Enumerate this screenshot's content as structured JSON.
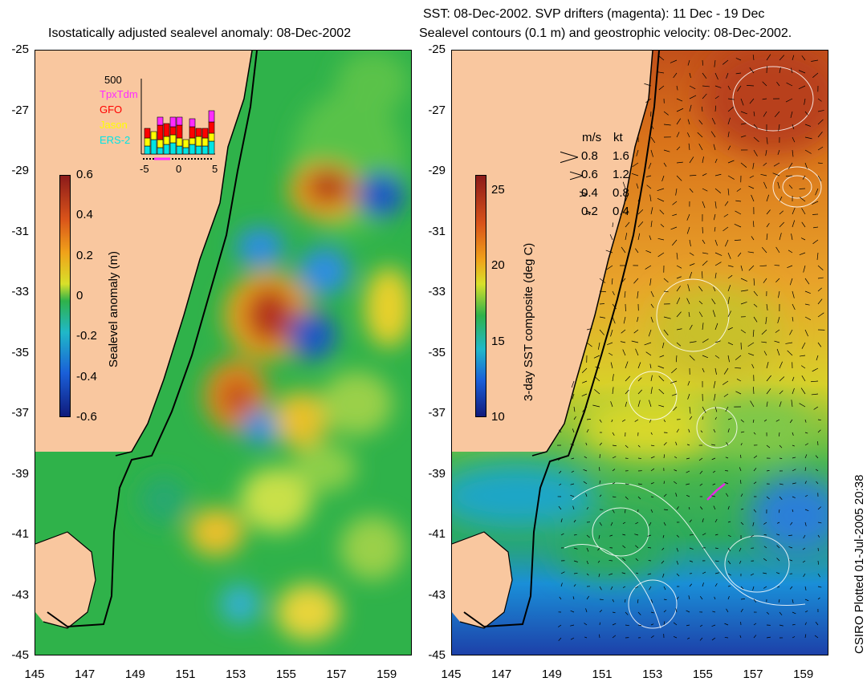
{
  "left_panel": {
    "title": "Isostatically adjusted sealevel anomaly: 08-Dec-2002",
    "colorbar": {
      "label": "Sealevel anomaly (m)",
      "ticks": [
        "0.6",
        "0.4",
        "0.2",
        "0",
        "-0.2",
        "-0.4",
        "-0.6"
      ]
    },
    "inset": {
      "ymax_label": "500",
      "missions": [
        {
          "name": "TpxTdm",
          "color": "#ff2bff"
        },
        {
          "name": "GFO",
          "color": "#ff0000"
        },
        {
          "name": "Jason",
          "color": "#ffff00"
        },
        {
          "name": "ERS-2",
          "color": "#00e5e5"
        }
      ],
      "x_ticks": [
        "-5",
        "0",
        "5"
      ]
    }
  },
  "right_panel": {
    "title_line1": "SST: 08-Dec-2002. SVP drifters (magenta): 11 Dec - 19 Dec",
    "title_line2": "Sealevel contours (0.1 m) and geostrophic velocity: 08-Dec-2002.",
    "colorbar": {
      "label": "3-day SST composite (deg C)",
      "ticks": [
        "25",
        "20",
        "15",
        "10"
      ]
    },
    "velocity_legend": {
      "header_ms": "m/s",
      "header_kt": "kt",
      "rows": [
        {
          "ms": "0.8",
          "kt": "1.6"
        },
        {
          "ms": "0.6",
          "kt": "1.2"
        },
        {
          "ms": "0.4",
          "kt": "0.8"
        },
        {
          "ms": "0.2",
          "kt": "0.4"
        }
      ]
    }
  },
  "axes": {
    "y_ticks": [
      "-25",
      "-27",
      "-29",
      "-31",
      "-33",
      "-35",
      "-37",
      "-39",
      "-41",
      "-43",
      "-45"
    ],
    "x_ticks": [
      "145",
      "147",
      "149",
      "151",
      "153",
      "155",
      "157",
      "159"
    ]
  },
  "credit": "CSIRO Plotted 01-Jul-2005 20:38",
  "colors": {
    "land": "#f9c79f",
    "ocean_mid": "#2fb24a",
    "coast": "#000000"
  }
}
